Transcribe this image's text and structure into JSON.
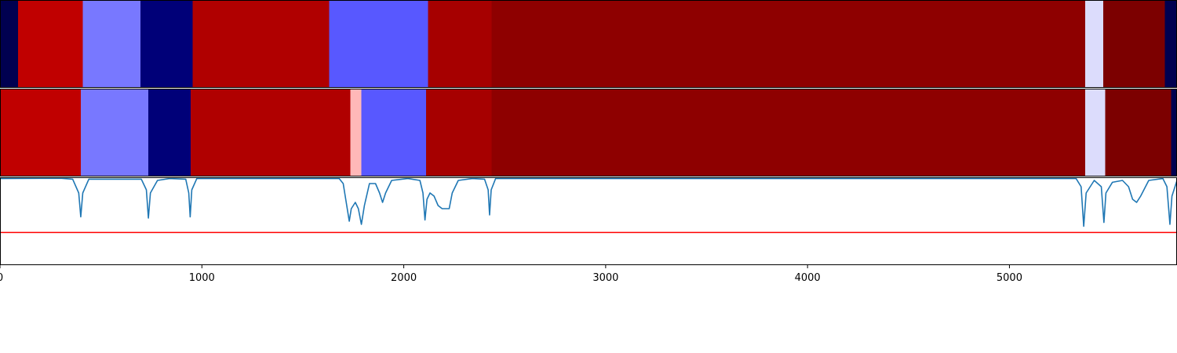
{
  "chart_data": [
    {
      "type": "heatmap",
      "name": "segmentation-top",
      "xlim": [
        0,
        5830
      ],
      "segments": [
        {
          "start": 0,
          "end": 90,
          "color": "#000050"
        },
        {
          "start": 90,
          "end": 410,
          "color": "#c00000"
        },
        {
          "start": 410,
          "end": 695,
          "color": "#7878ff"
        },
        {
          "start": 695,
          "end": 955,
          "color": "#000078"
        },
        {
          "start": 955,
          "end": 1630,
          "color": "#b00000"
        },
        {
          "start": 1630,
          "end": 2120,
          "color": "#5858ff"
        },
        {
          "start": 2120,
          "end": 2435,
          "color": "#a60000"
        },
        {
          "start": 2435,
          "end": 5375,
          "color": "#8e0000"
        },
        {
          "start": 5375,
          "end": 5465,
          "color": "#dcdcfc"
        },
        {
          "start": 5465,
          "end": 5770,
          "color": "#7c0000"
        },
        {
          "start": 5770,
          "end": 5830,
          "color": "#000050"
        }
      ]
    },
    {
      "type": "heatmap",
      "name": "segmentation-bottom",
      "xlim": [
        0,
        5830
      ],
      "segments": [
        {
          "start": 0,
          "end": 400,
          "color": "#c00000"
        },
        {
          "start": 400,
          "end": 735,
          "color": "#7878ff"
        },
        {
          "start": 735,
          "end": 945,
          "color": "#000078"
        },
        {
          "start": 945,
          "end": 1735,
          "color": "#b00000"
        },
        {
          "start": 1735,
          "end": 1790,
          "color": "#ffb8b8"
        },
        {
          "start": 1790,
          "end": 2110,
          "color": "#5858ff"
        },
        {
          "start": 2110,
          "end": 2435,
          "color": "#a60000"
        },
        {
          "start": 2435,
          "end": 5375,
          "color": "#8e0000"
        },
        {
          "start": 5375,
          "end": 5475,
          "color": "#dcdcfc"
        },
        {
          "start": 5475,
          "end": 5800,
          "color": "#7c0000"
        },
        {
          "start": 5800,
          "end": 5830,
          "color": "#000050"
        }
      ]
    },
    {
      "type": "line",
      "name": "boundary-signal",
      "xlim": [
        0,
        5830
      ],
      "ylim": [
        -0.4,
        1.0
      ],
      "threshold": 0.12,
      "threshold_color": "#ff0000",
      "line_color": "#1f77b4",
      "x_ticks": [
        0,
        1000,
        2000,
        3000,
        4000,
        5000
      ],
      "x_tick_labels": [
        "0",
        "1000",
        "2000",
        "3000",
        "4000",
        "5000"
      ],
      "points": [
        [
          0,
          0.98
        ],
        [
          300,
          0.985
        ],
        [
          360,
          0.97
        ],
        [
          390,
          0.75
        ],
        [
          400,
          0.37
        ],
        [
          410,
          0.75
        ],
        [
          440,
          0.97
        ],
        [
          700,
          0.97
        ],
        [
          725,
          0.8
        ],
        [
          735,
          0.35
        ],
        [
          745,
          0.75
        ],
        [
          780,
          0.95
        ],
        [
          840,
          0.98
        ],
        [
          920,
          0.97
        ],
        [
          935,
          0.75
        ],
        [
          942,
          0.37
        ],
        [
          950,
          0.8
        ],
        [
          975,
          0.98
        ],
        [
          1680,
          0.98
        ],
        [
          1700,
          0.9
        ],
        [
          1715,
          0.6
        ],
        [
          1730,
          0.3
        ],
        [
          1740,
          0.5
        ],
        [
          1760,
          0.6
        ],
        [
          1775,
          0.5
        ],
        [
          1790,
          0.25
        ],
        [
          1805,
          0.55
        ],
        [
          1830,
          0.9
        ],
        [
          1860,
          0.9
        ],
        [
          1880,
          0.75
        ],
        [
          1895,
          0.6
        ],
        [
          1910,
          0.75
        ],
        [
          1940,
          0.95
        ],
        [
          2020,
          0.98
        ],
        [
          2080,
          0.95
        ],
        [
          2095,
          0.75
        ],
        [
          2105,
          0.32
        ],
        [
          2115,
          0.65
        ],
        [
          2130,
          0.75
        ],
        [
          2150,
          0.7
        ],
        [
          2170,
          0.55
        ],
        [
          2190,
          0.5
        ],
        [
          2210,
          0.5
        ],
        [
          2225,
          0.5
        ],
        [
          2240,
          0.75
        ],
        [
          2270,
          0.95
        ],
        [
          2340,
          0.98
        ],
        [
          2400,
          0.97
        ],
        [
          2418,
          0.8
        ],
        [
          2425,
          0.4
        ],
        [
          2433,
          0.8
        ],
        [
          2455,
          0.98
        ],
        [
          5330,
          0.98
        ],
        [
          5355,
          0.85
        ],
        [
          5368,
          0.22
        ],
        [
          5380,
          0.75
        ],
        [
          5420,
          0.95
        ],
        [
          5455,
          0.85
        ],
        [
          5468,
          0.28
        ],
        [
          5478,
          0.75
        ],
        [
          5510,
          0.92
        ],
        [
          5560,
          0.95
        ],
        [
          5590,
          0.85
        ],
        [
          5610,
          0.65
        ],
        [
          5630,
          0.6
        ],
        [
          5650,
          0.7
        ],
        [
          5690,
          0.95
        ],
        [
          5760,
          0.98
        ],
        [
          5780,
          0.85
        ],
        [
          5795,
          0.25
        ],
        [
          5805,
          0.7
        ],
        [
          5830,
          0.95
        ]
      ]
    }
  ]
}
